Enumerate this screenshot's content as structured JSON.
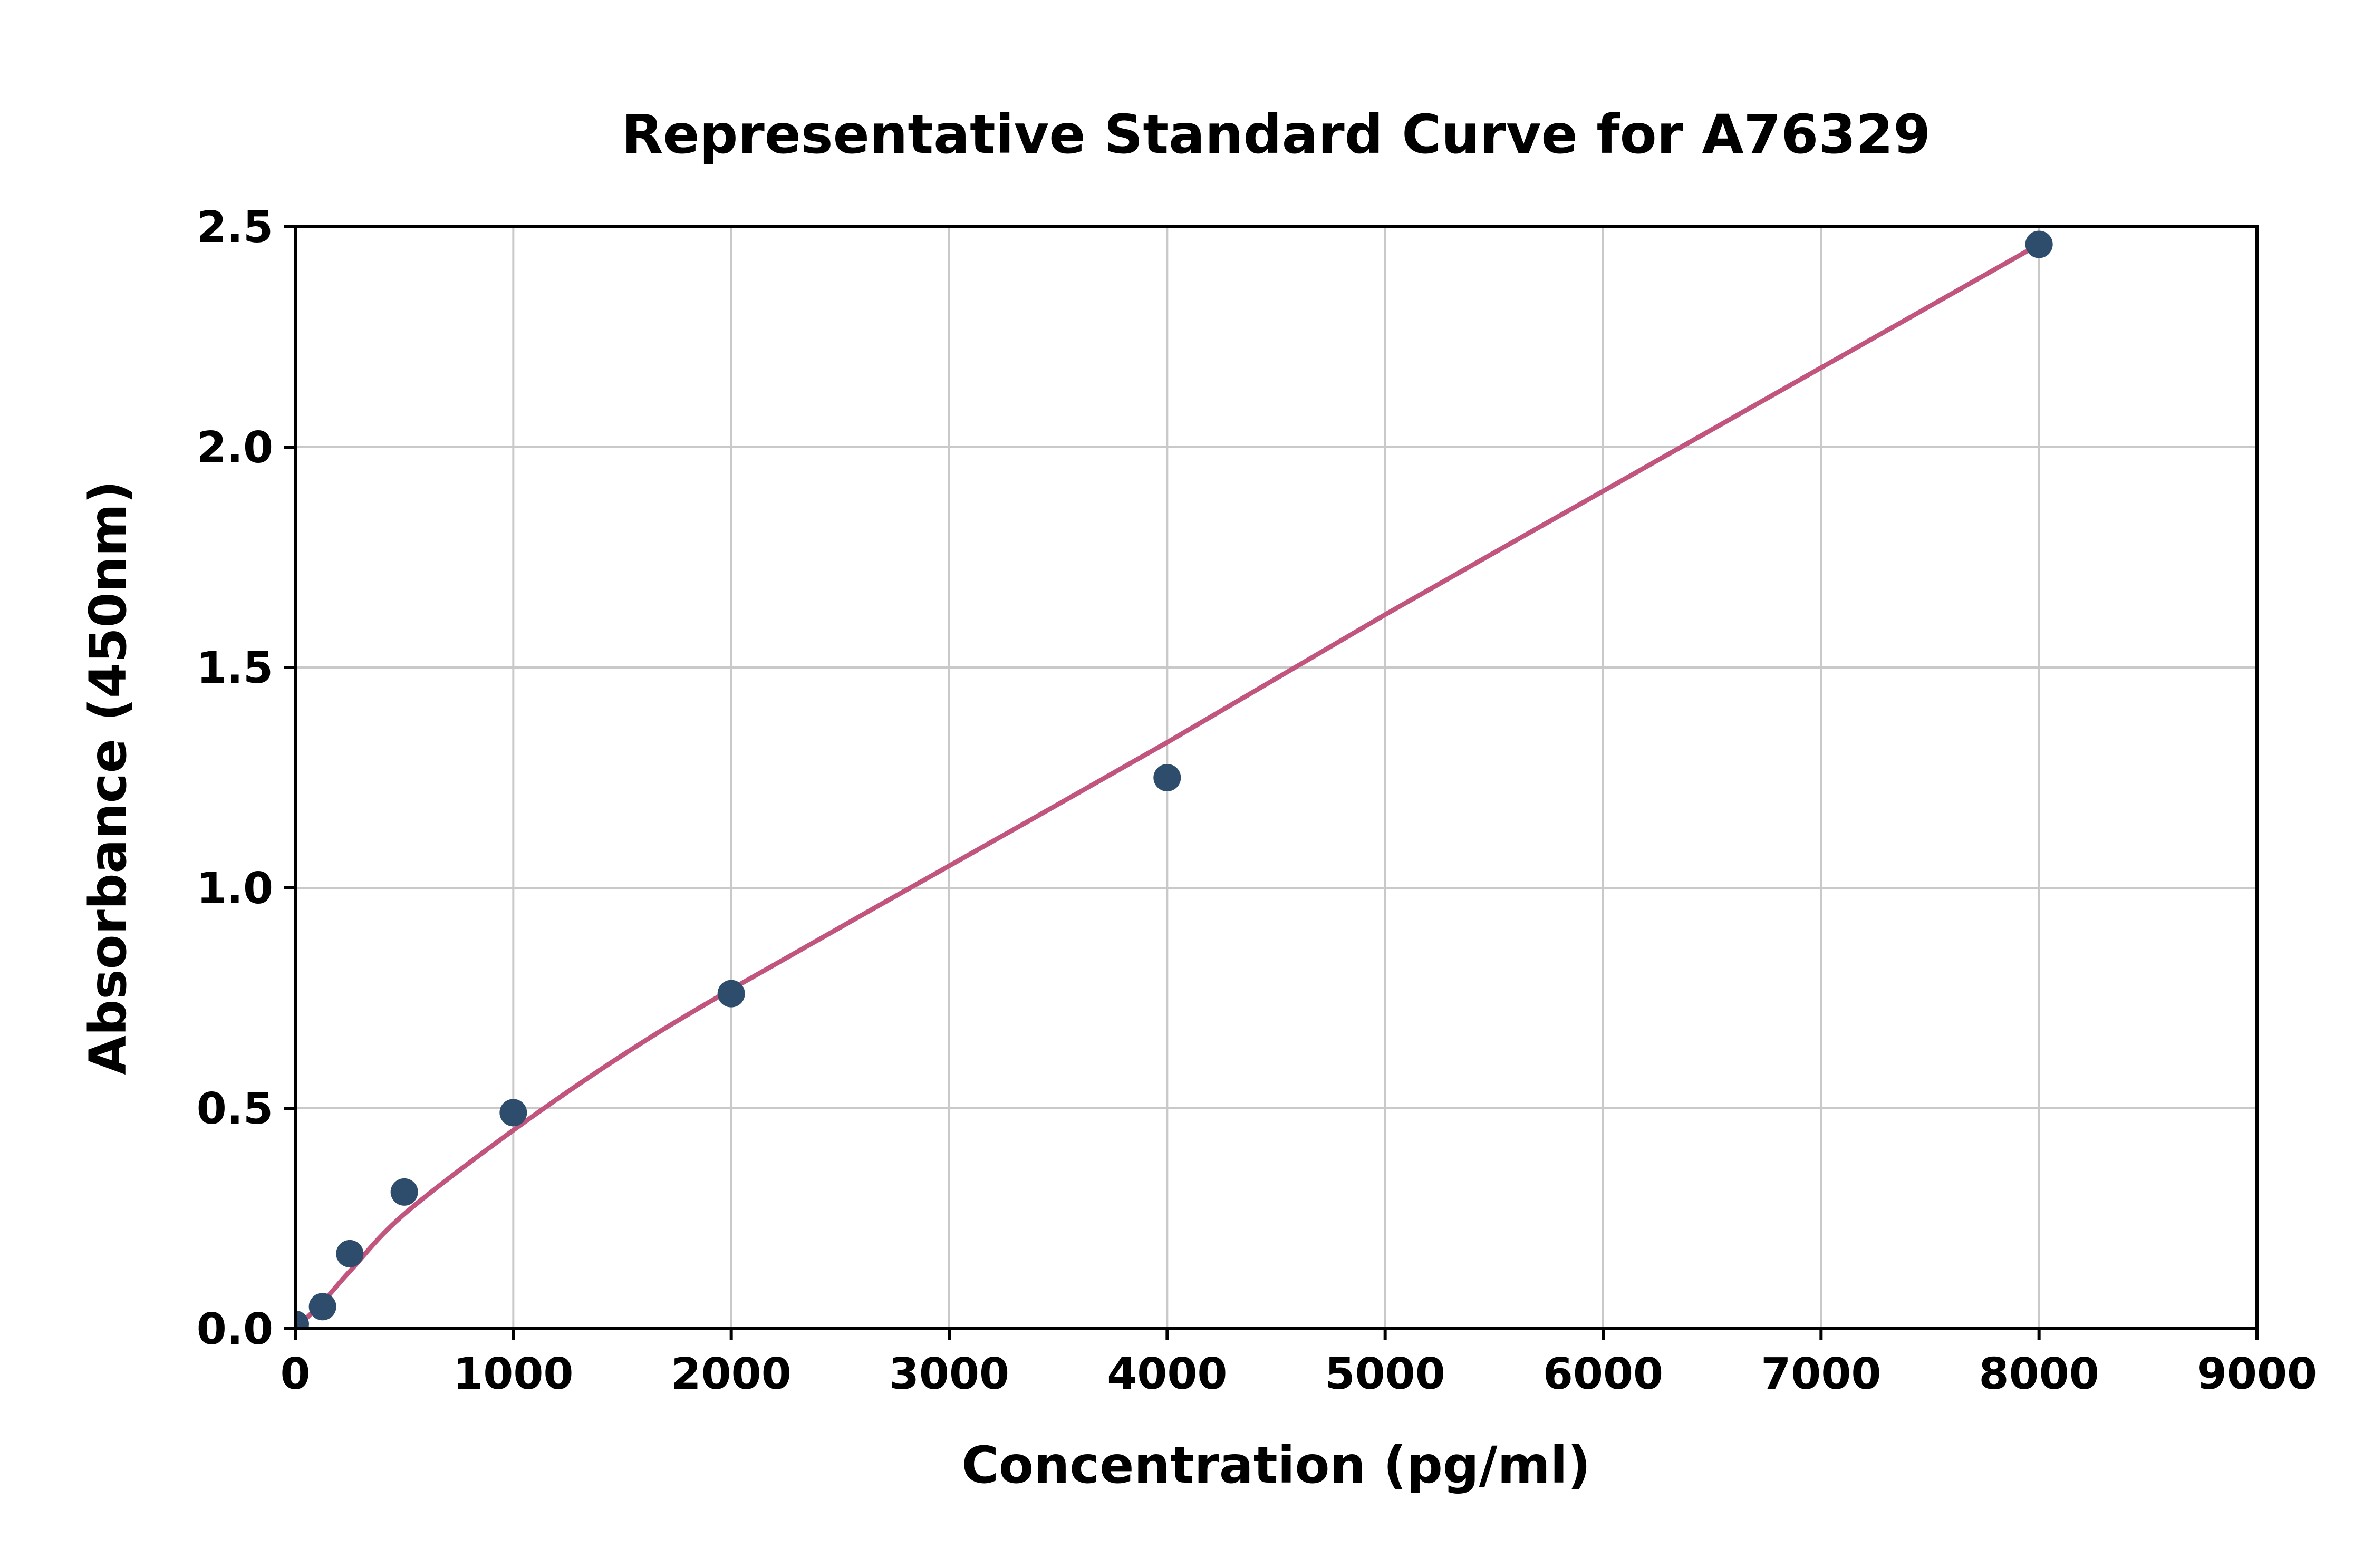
{
  "chart_data": {
    "type": "scatter",
    "title": "Representative Standard Curve for A76329",
    "xlabel": "Concentration (pg/ml)",
    "ylabel": "Absorbance (450nm)",
    "xlim": [
      0,
      9000
    ],
    "ylim": [
      0,
      2.5
    ],
    "grid": true,
    "x_ticks": [
      0,
      1000,
      2000,
      3000,
      4000,
      5000,
      6000,
      7000,
      8000,
      9000
    ],
    "x_tick_labels": [
      "0",
      "1000",
      "2000",
      "3000",
      "4000",
      "5000",
      "6000",
      "7000",
      "8000",
      "9000"
    ],
    "y_ticks": [
      0,
      0.5,
      1.0,
      1.5,
      2.0,
      2.5
    ],
    "y_tick_labels": [
      "0.0",
      "0.5",
      "1.0",
      "1.5",
      "2.0",
      "2.5"
    ],
    "series": [
      {
        "name": "standard-points",
        "type": "scatter",
        "color": "#2e4d6c",
        "points": [
          {
            "x": 0,
            "y": 0.01
          },
          {
            "x": 125,
            "y": 0.05
          },
          {
            "x": 250,
            "y": 0.17
          },
          {
            "x": 500,
            "y": 0.31
          },
          {
            "x": 1000,
            "y": 0.49
          },
          {
            "x": 2000,
            "y": 0.76
          },
          {
            "x": 4000,
            "y": 1.25
          },
          {
            "x": 8000,
            "y": 2.46
          }
        ]
      },
      {
        "name": "fit-curve",
        "type": "line",
        "color": "#c2557d",
        "points": [
          {
            "x": 0,
            "y": 0.0
          },
          {
            "x": 125,
            "y": 0.06
          },
          {
            "x": 250,
            "y": 0.13
          },
          {
            "x": 500,
            "y": 0.26
          },
          {
            "x": 1000,
            "y": 0.45
          },
          {
            "x": 1500,
            "y": 0.62
          },
          {
            "x": 2000,
            "y": 0.77
          },
          {
            "x": 3000,
            "y": 1.05
          },
          {
            "x": 4000,
            "y": 1.33
          },
          {
            "x": 5000,
            "y": 1.62
          },
          {
            "x": 6000,
            "y": 1.9
          },
          {
            "x": 7000,
            "y": 2.18
          },
          {
            "x": 8000,
            "y": 2.46
          }
        ]
      }
    ],
    "colors": {
      "grid": "#c9c9c9",
      "axis": "#000000",
      "background": "#ffffff"
    }
  }
}
